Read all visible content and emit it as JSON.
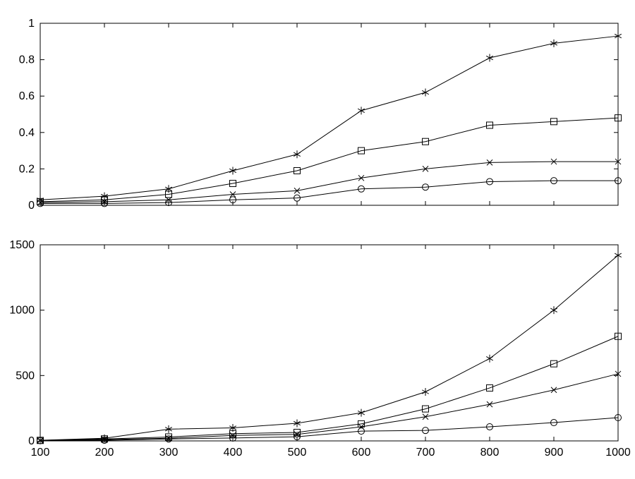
{
  "figure": {
    "background": "#ffffff",
    "line_color": "#000000",
    "tick_label_color": "#000000"
  },
  "chart_data": [
    {
      "type": "line",
      "position": "top",
      "title": "",
      "xlabel": "",
      "ylabel": "",
      "grid": false,
      "legend": "none",
      "x": [
        100,
        200,
        300,
        400,
        500,
        600,
        700,
        800,
        900,
        1000
      ],
      "xlim": [
        100,
        1000
      ],
      "ylim": [
        0,
        1
      ],
      "xticks": [
        100,
        200,
        300,
        400,
        500,
        600,
        700,
        800,
        900,
        1000
      ],
      "xtick_labels": [
        "100",
        "200",
        "300",
        "400",
        "500",
        "600",
        "700",
        "800",
        "900",
        "1000"
      ],
      "show_x_tick_labels": false,
      "yticks": [
        0,
        0.2,
        0.4,
        0.6,
        0.8,
        1
      ],
      "ytick_labels": [
        "0",
        "0.2",
        "0.4",
        "0.6",
        "0.8",
        "1"
      ],
      "series": [
        {
          "name": "series-asterisk",
          "marker": "asterisk",
          "values": [
            0.03,
            0.05,
            0.09,
            0.19,
            0.28,
            0.52,
            0.62,
            0.81,
            0.89,
            0.93
          ]
        },
        {
          "name": "series-square",
          "marker": "square",
          "values": [
            0.02,
            0.03,
            0.06,
            0.12,
            0.19,
            0.3,
            0.35,
            0.44,
            0.46,
            0.48
          ]
        },
        {
          "name": "series-x",
          "marker": "x",
          "values": [
            0.015,
            0.02,
            0.03,
            0.06,
            0.08,
            0.15,
            0.2,
            0.235,
            0.24,
            0.24
          ]
        },
        {
          "name": "series-circle",
          "marker": "circle",
          "values": [
            0.01,
            0.01,
            0.015,
            0.03,
            0.04,
            0.09,
            0.1,
            0.13,
            0.135,
            0.135
          ]
        }
      ]
    },
    {
      "type": "line",
      "position": "bottom",
      "title": "",
      "xlabel": "",
      "ylabel": "",
      "grid": false,
      "legend": "none",
      "x": [
        100,
        200,
        300,
        400,
        500,
        600,
        700,
        800,
        900,
        1000
      ],
      "xlim": [
        100,
        1000
      ],
      "ylim": [
        0,
        1500
      ],
      "xticks": [
        100,
        200,
        300,
        400,
        500,
        600,
        700,
        800,
        900,
        1000
      ],
      "xtick_labels": [
        "100",
        "200",
        "300",
        "400",
        "500",
        "600",
        "700",
        "800",
        "900",
        "1000"
      ],
      "show_x_tick_labels": true,
      "yticks": [
        0,
        500,
        1000,
        1500
      ],
      "ytick_labels": [
        "0",
        "500",
        "1000",
        "1500"
      ],
      "series": [
        {
          "name": "series-asterisk",
          "marker": "asterisk",
          "values": [
            5,
            20,
            90,
            100,
            135,
            215,
            375,
            630,
            1000,
            1420
          ]
        },
        {
          "name": "series-square",
          "marker": "square",
          "values": [
            4,
            15,
            30,
            55,
            65,
            130,
            245,
            405,
            590,
            800
          ]
        },
        {
          "name": "series-x",
          "marker": "x",
          "values": [
            3,
            10,
            20,
            42,
            50,
            108,
            185,
            280,
            390,
            513
          ]
        },
        {
          "name": "series-circle",
          "marker": "circle",
          "values": [
            2,
            5,
            15,
            22,
            32,
            75,
            80,
            108,
            140,
            178
          ]
        }
      ]
    }
  ]
}
